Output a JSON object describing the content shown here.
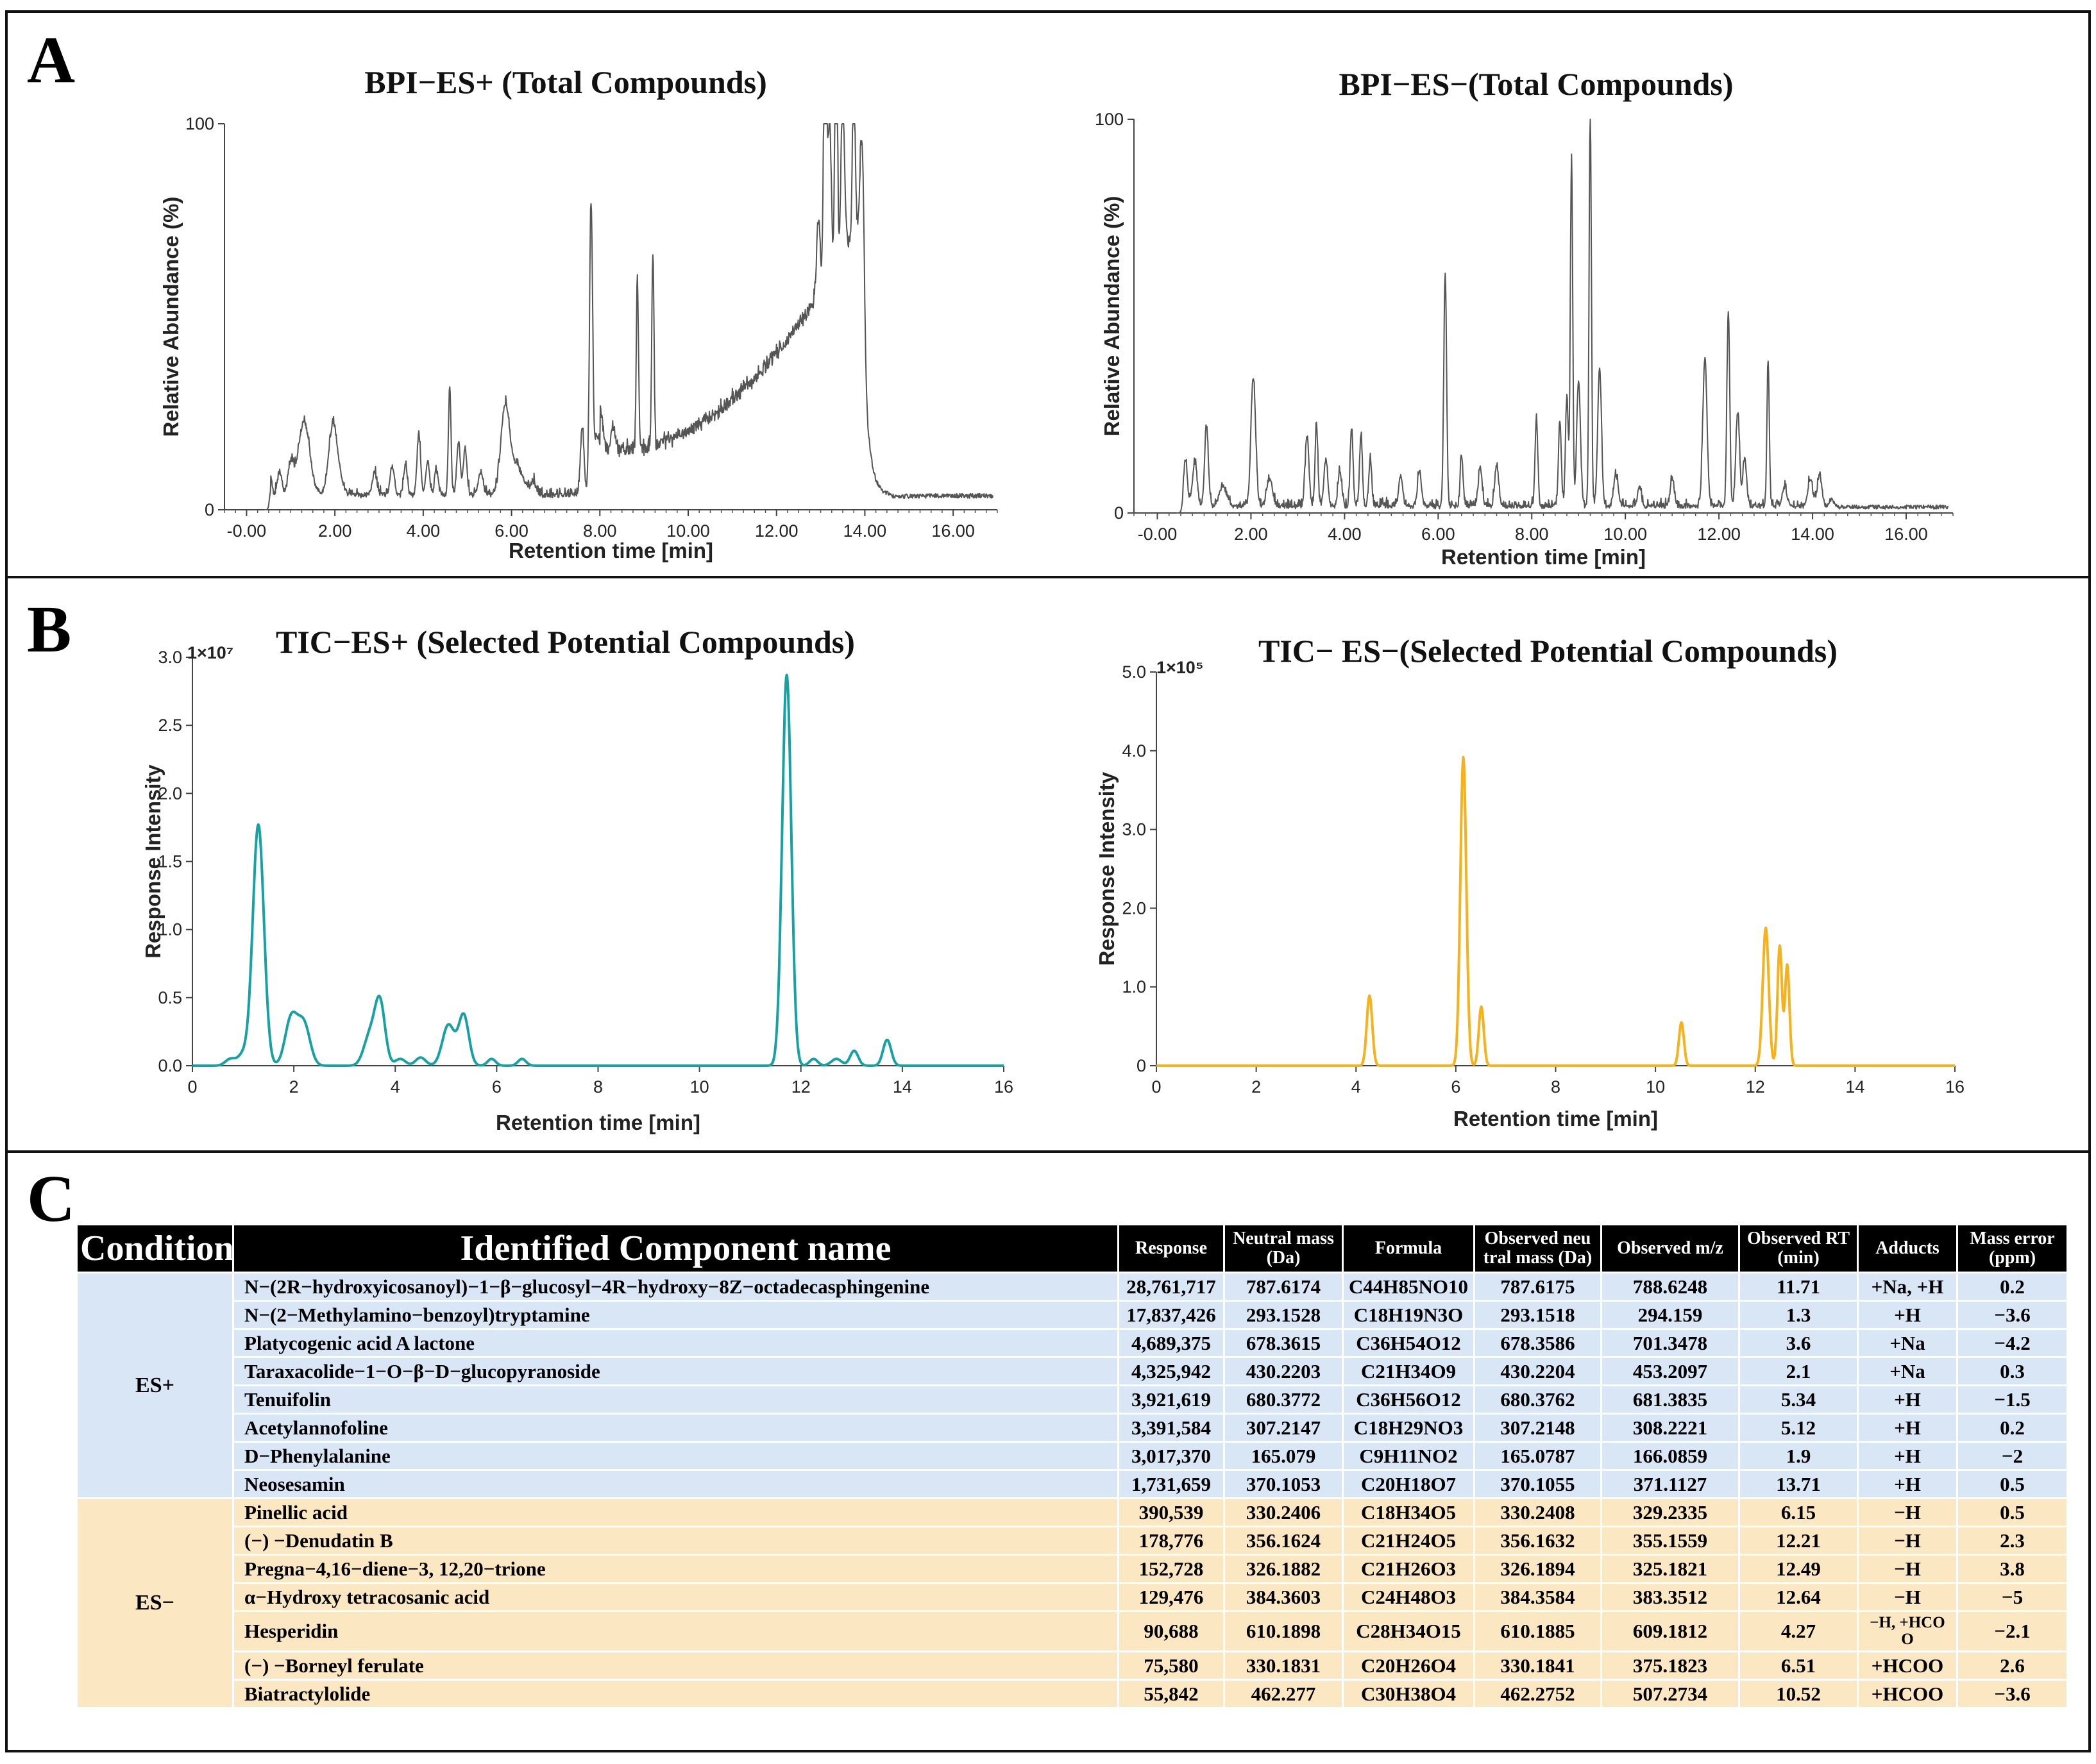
{
  "panels": {
    "a": "A",
    "b": "B",
    "c": "C"
  },
  "chart_data": [
    {
      "id": "bpi_pos",
      "type": "line",
      "title": "BPI−ES+ (Total Compounds)",
      "xlabel": "Retention time [min]",
      "ylabel": "Relative Abundance (%)",
      "xlim": [
        -0.5,
        17.0
      ],
      "ylim": [
        0,
        100
      ],
      "xticks": [
        0,
        2,
        4,
        6,
        8,
        10,
        12,
        14,
        16
      ],
      "xtick_labels": [
        "-0.00",
        "2.00",
        "4.00",
        "6.00",
        "8.00",
        "10.00",
        "12.00",
        "14.00",
        "16.00"
      ],
      "yticks": [
        0,
        100
      ],
      "ytick_labels": [
        "0",
        "100"
      ],
      "minor_ticks": true,
      "color": "#555555",
      "baseline": 3,
      "noise": 1.2,
      "peaks": [
        [
          0.55,
          5,
          0.03
        ],
        [
          0.75,
          6,
          0.05
        ],
        [
          1.0,
          8,
          0.06
        ],
        [
          1.3,
          19,
          0.13
        ],
        [
          1.95,
          11,
          0.09
        ],
        [
          2.0,
          8,
          0.12
        ],
        [
          2.9,
          6,
          0.05
        ],
        [
          3.3,
          7,
          0.05
        ],
        [
          3.6,
          8,
          0.04
        ],
        [
          3.9,
          16,
          0.04
        ],
        [
          4.1,
          9,
          0.04
        ],
        [
          4.3,
          6,
          0.04
        ],
        [
          4.6,
          28,
          0.03
        ],
        [
          4.8,
          14,
          0.04
        ],
        [
          4.95,
          12,
          0.04
        ],
        [
          5.3,
          6,
          0.05
        ],
        [
          5.85,
          19,
          0.09
        ],
        [
          6.05,
          8,
          0.2
        ],
        [
          6.5,
          3,
          0.05
        ],
        [
          7.6,
          18,
          0.04
        ],
        [
          7.8,
          72,
          0.035
        ],
        [
          7.95,
          15,
          0.09
        ],
        [
          8.3,
          7,
          0.05
        ],
        [
          8.85,
          44,
          0.025
        ],
        [
          9.2,
          50,
          0.025
        ],
        [
          12.95,
          20,
          0.04
        ],
        [
          13.1,
          92,
          0.03
        ],
        [
          13.2,
          40,
          0.04
        ],
        [
          13.35,
          98,
          0.025
        ],
        [
          13.5,
          40,
          0.04
        ],
        [
          13.75,
          42,
          0.03
        ],
        [
          13.95,
          40,
          0.04
        ]
      ],
      "humps": [
        [
          8.0,
          13.9,
          11,
          71
        ]
      ]
    },
    {
      "id": "bpi_neg",
      "type": "line",
      "title": "BPI−ES−(Total Compounds)",
      "xlabel": "Retention time [min]",
      "ylabel": "Relative Abundance (%)",
      "xlim": [
        -0.5,
        17.0
      ],
      "ylim": [
        0,
        100
      ],
      "xticks": [
        0,
        2,
        4,
        6,
        8,
        10,
        12,
        14,
        16
      ],
      "xtick_labels": [
        "-0.00",
        "2.00",
        "4.00",
        "6.00",
        "8.00",
        "10.00",
        "12.00",
        "14.00",
        "16.00"
      ],
      "yticks": [
        0,
        100
      ],
      "ytick_labels": [
        "0",
        "100"
      ],
      "minor_ticks": true,
      "color": "#555555",
      "baseline": 1,
      "noise": 1.0,
      "peaks": [
        [
          0.6,
          12,
          0.04
        ],
        [
          0.8,
          11,
          0.05
        ],
        [
          1.05,
          20,
          0.04
        ],
        [
          1.4,
          5,
          0.08
        ],
        [
          2.05,
          33,
          0.05
        ],
        [
          2.4,
          7,
          0.06
        ],
        [
          3.2,
          18,
          0.04
        ],
        [
          3.4,
          21,
          0.03
        ],
        [
          3.6,
          12,
          0.04
        ],
        [
          3.9,
          9,
          0.04
        ],
        [
          4.15,
          20,
          0.03
        ],
        [
          4.35,
          18,
          0.03
        ],
        [
          4.55,
          12,
          0.03
        ],
        [
          5.2,
          8,
          0.04
        ],
        [
          5.6,
          9,
          0.04
        ],
        [
          6.15,
          59,
          0.03
        ],
        [
          6.5,
          13,
          0.03
        ],
        [
          6.9,
          10,
          0.04
        ],
        [
          7.25,
          10,
          0.04
        ],
        [
          8.1,
          22,
          0.03
        ],
        [
          8.6,
          22,
          0.03
        ],
        [
          8.75,
          28,
          0.03
        ],
        [
          8.85,
          89,
          0.025
        ],
        [
          9.0,
          32,
          0.04
        ],
        [
          9.25,
          100,
          0.025
        ],
        [
          9.45,
          35,
          0.04
        ],
        [
          9.8,
          8,
          0.05
        ],
        [
          10.3,
          5,
          0.04
        ],
        [
          11.0,
          7,
          0.04
        ],
        [
          11.7,
          38,
          0.045
        ],
        [
          12.2,
          50,
          0.03
        ],
        [
          12.4,
          24,
          0.04
        ],
        [
          12.55,
          12,
          0.04
        ],
        [
          13.05,
          37,
          0.025
        ],
        [
          13.4,
          5,
          0.05
        ],
        [
          13.95,
          7,
          0.05
        ],
        [
          14.15,
          8,
          0.05
        ],
        [
          14.4,
          2,
          0.05
        ]
      ],
      "humps": []
    },
    {
      "id": "tic_pos",
      "type": "line",
      "title": "TIC−ES+ (Selected Potential Compounds)",
      "multiplier": "1×10⁷",
      "xlabel": "Retention time [min]",
      "ylabel": "Response Intensity",
      "xlim": [
        0,
        16
      ],
      "ylim": [
        0,
        3.0
      ],
      "xticks": [
        0,
        2,
        4,
        6,
        8,
        10,
        12,
        14,
        16
      ],
      "xtick_labels": [
        "0",
        "2",
        "4",
        "6",
        "8",
        "10",
        "12",
        "14",
        "16"
      ],
      "yticks": [
        0,
        0.5,
        1.0,
        1.5,
        2.0,
        2.5,
        3.0
      ],
      "ytick_labels": [
        "0.0",
        "0.5",
        "1.0",
        "1.5",
        "2.0",
        "2.5",
        "3.0"
      ],
      "minor_ticks": false,
      "color": "#16a1a3",
      "baseline": 0,
      "noise": 0,
      "peaks": [
        [
          0.75,
          0.05,
          0.1
        ],
        [
          1.0,
          0.08,
          0.1
        ],
        [
          1.3,
          1.77,
          0.11
        ],
        [
          1.95,
          0.35,
          0.12
        ],
        [
          2.2,
          0.3,
          0.12
        ],
        [
          3.5,
          0.22,
          0.12
        ],
        [
          3.7,
          0.45,
          0.1
        ],
        [
          4.1,
          0.05,
          0.1
        ],
        [
          4.5,
          0.06,
          0.1
        ],
        [
          5.05,
          0.3,
          0.12
        ],
        [
          5.35,
          0.37,
          0.1
        ],
        [
          5.9,
          0.05,
          0.08
        ],
        [
          6.5,
          0.05,
          0.08
        ],
        [
          11.72,
          2.87,
          0.09
        ],
        [
          12.25,
          0.05,
          0.08
        ],
        [
          12.7,
          0.05,
          0.1
        ],
        [
          13.05,
          0.11,
          0.08
        ],
        [
          13.7,
          0.19,
          0.08
        ]
      ],
      "humps": []
    },
    {
      "id": "tic_neg",
      "type": "line",
      "title": "TIC− ES−(Selected Potential Compounds)",
      "multiplier": "1×10⁵",
      "xlabel": "Retention time [min]",
      "ylabel": "Response Intensity",
      "xlim": [
        0,
        16
      ],
      "ylim": [
        0,
        5.0
      ],
      "xticks": [
        0,
        2,
        4,
        6,
        8,
        10,
        12,
        14,
        16
      ],
      "xtick_labels": [
        "0",
        "2",
        "4",
        "6",
        "8",
        "10",
        "12",
        "14",
        "16"
      ],
      "yticks": [
        0,
        1.0,
        2.0,
        3.0,
        4.0,
        5.0
      ],
      "ytick_labels": [
        "0",
        "1.0",
        "2.0",
        "3.0",
        "4.0",
        "5.0"
      ],
      "minor_ticks": false,
      "color": "#f5b21a",
      "baseline": 0,
      "noise": 0,
      "peaks": [
        [
          4.27,
          0.89,
          0.055
        ],
        [
          6.15,
          3.92,
          0.06
        ],
        [
          6.51,
          0.75,
          0.05
        ],
        [
          10.52,
          0.55,
          0.05
        ],
        [
          12.21,
          1.75,
          0.06
        ],
        [
          12.49,
          1.52,
          0.045
        ],
        [
          12.64,
          1.28,
          0.045
        ]
      ],
      "humps": []
    }
  ],
  "table": {
    "headers": {
      "condition": "Condition",
      "name": "Identified Component name",
      "response": "Response",
      "neutral_mass": "Neutral mass (Da)",
      "formula": "Formula",
      "observed_neutral_mass": "Observed neu tral mass (Da)",
      "observed_mz": "Observed m/z",
      "observed_rt": "Observed RT (min)",
      "adducts": "Adducts",
      "mass_error": "Mass error (ppm)"
    },
    "groups": [
      {
        "condition": "ES+",
        "tone": "pos",
        "rows": [
          {
            "name": "N−(2R−hydroxyicosanoyl)−1−β−glucosyl−4R−hydroxy−8Z−octadecasphingenine",
            "response": "28,761,717",
            "neutral_mass": "787.6174",
            "formula": "C44H85NO10",
            "observed_neutral_mass": "787.6175",
            "observed_mz": "788.6248",
            "observed_rt": "11.71",
            "adducts": "+Na, +H",
            "mass_error": "0.2"
          },
          {
            "name": "N−(2−Methylamino−benzoyl)tryptamine",
            "response": "17,837,426",
            "neutral_mass": "293.1528",
            "formula": "C18H19N3O",
            "observed_neutral_mass": "293.1518",
            "observed_mz": "294.159",
            "observed_rt": "1.3",
            "adducts": "+H",
            "mass_error": "−3.6"
          },
          {
            "name": "Platycogenic acid A lactone",
            "response": "4,689,375",
            "neutral_mass": "678.3615",
            "formula": "C36H54O12",
            "observed_neutral_mass": "678.3586",
            "observed_mz": "701.3478",
            "observed_rt": "3.6",
            "adducts": "+Na",
            "mass_error": "−4.2"
          },
          {
            "name": "Taraxacolide−1−O−β−D−glucopyranoside",
            "response": "4,325,942",
            "neutral_mass": "430.2203",
            "formula": "C21H34O9",
            "observed_neutral_mass": "430.2204",
            "observed_mz": "453.2097",
            "observed_rt": "2.1",
            "adducts": "+Na",
            "mass_error": "0.3"
          },
          {
            "name": "Tenuifolin",
            "response": "3,921,619",
            "neutral_mass": "680.3772",
            "formula": "C36H56O12",
            "observed_neutral_mass": "680.3762",
            "observed_mz": "681.3835",
            "observed_rt": "5.34",
            "adducts": "+H",
            "mass_error": "−1.5"
          },
          {
            "name": "Acetylannofoline",
            "response": "3,391,584",
            "neutral_mass": "307.2147",
            "formula": "C18H29NO3",
            "observed_neutral_mass": "307.2148",
            "observed_mz": "308.2221",
            "observed_rt": "5.12",
            "adducts": "+H",
            "mass_error": "0.2"
          },
          {
            "name": "D−Phenylalanine",
            "response": "3,017,370",
            "neutral_mass": "165.079",
            "formula": "C9H11NO2",
            "observed_neutral_mass": "165.0787",
            "observed_mz": "166.0859",
            "observed_rt": "1.9",
            "adducts": "+H",
            "mass_error": "−2"
          },
          {
            "name": "Neosesamin",
            "response": "1,731,659",
            "neutral_mass": "370.1053",
            "formula": "C20H18O7",
            "observed_neutral_mass": "370.1055",
            "observed_mz": "371.1127",
            "observed_rt": "13.71",
            "adducts": "+H",
            "mass_error": "0.5"
          }
        ]
      },
      {
        "condition": "ES−",
        "tone": "neg",
        "rows": [
          {
            "name": "Pinellic acid",
            "response": "390,539",
            "neutral_mass": "330.2406",
            "formula": "C18H34O5",
            "observed_neutral_mass": "330.2408",
            "observed_mz": "329.2335",
            "observed_rt": "6.15",
            "adducts": "−H",
            "mass_error": "0.5"
          },
          {
            "name": "(−) −Denudatin B",
            "response": "178,776",
            "neutral_mass": "356.1624",
            "formula": "C21H24O5",
            "observed_neutral_mass": "356.1632",
            "observed_mz": "355.1559",
            "observed_rt": "12.21",
            "adducts": "−H",
            "mass_error": "2.3"
          },
          {
            "name": "Pregna−4,16−diene−3, 12,20−trione",
            "response": "152,728",
            "neutral_mass": "326.1882",
            "formula": "C21H26O3",
            "observed_neutral_mass": "326.1894",
            "observed_mz": "325.1821",
            "observed_rt": "12.49",
            "adducts": "−H",
            "mass_error": "3.8"
          },
          {
            "name": "α−Hydroxy tetracosanic acid",
            "response": "129,476",
            "neutral_mass": "384.3603",
            "formula": "C24H48O3",
            "observed_neutral_mass": "384.3584",
            "observed_mz": "383.3512",
            "observed_rt": "12.64",
            "adducts": "−H",
            "mass_error": "−5"
          },
          {
            "name": "Hesperidin",
            "response": "90,688",
            "neutral_mass": "610.1898",
            "formula": "C28H34O15",
            "observed_neutral_mass": "610.1885",
            "observed_mz": "609.1812",
            "observed_rt": "4.27",
            "adducts": "−H, +HCO O",
            "mass_error": "−2.1"
          },
          {
            "name": "(−) −Borneyl ferulate",
            "response": "75,580",
            "neutral_mass": "330.1831",
            "formula": "C20H26O4",
            "observed_neutral_mass": "330.1841",
            "observed_mz": "375.1823",
            "observed_rt": "6.51",
            "adducts": "+HCOO",
            "mass_error": "2.6"
          },
          {
            "name": "Biatractylolide",
            "response": "55,842",
            "neutral_mass": "462.277",
            "formula": "C30H38O4",
            "observed_neutral_mass": "462.2752",
            "observed_mz": "507.2734",
            "observed_rt": "10.52",
            "adducts": "+HCOO",
            "mass_error": "−3.6"
          }
        ]
      }
    ]
  }
}
